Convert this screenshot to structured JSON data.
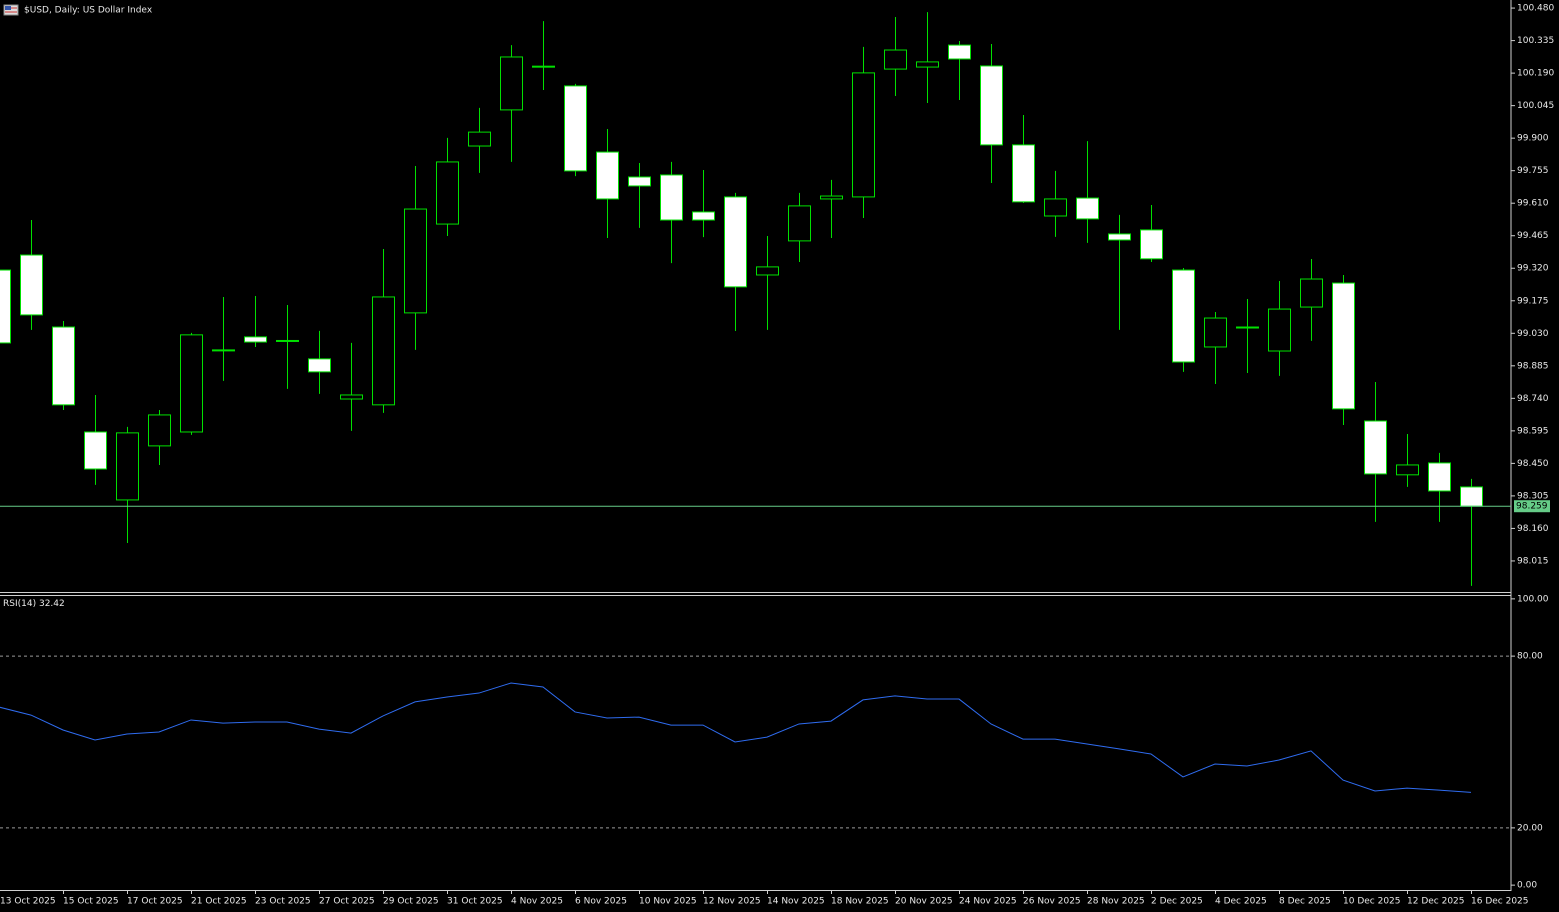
{
  "chart_data": [
    {
      "type": "candlestick",
      "title": "$USD, Daily:  US Dollar Index",
      "categories": [
        "13 Oct 2025",
        null,
        "15 Oct 2025",
        null,
        "17 Oct 2025",
        null,
        "21 Oct 2025",
        null,
        "23 Oct 2025",
        null,
        "27 Oct 2025",
        null,
        "29 Oct 2025",
        null,
        "31 Oct 2025",
        null,
        "4 Nov 2025",
        null,
        "6 Nov 2025",
        null,
        "10 Nov 2025",
        null,
        "12 Nov 2025",
        null,
        "14 Nov 2025",
        null,
        "18 Nov 2025",
        null,
        "20 Nov 2025",
        null,
        "24 Nov 2025",
        null,
        "26 Nov 2025",
        null,
        "28 Nov 2025",
        null,
        "2 Dec 2025",
        null,
        "4 Dec 2025",
        null,
        "8 Dec 2025",
        null,
        "10 Dec 2025",
        null,
        "12 Dec 2025",
        null,
        "16 Dec 2025"
      ],
      "open": [
        99.312,
        99.379,
        99.058,
        98.59,
        98.287,
        98.528,
        98.59,
        98.952,
        99.014,
        98.998,
        98.916,
        98.737,
        98.711,
        99.121,
        99.517,
        99.865,
        100.026,
        100.218,
        100.133,
        99.838,
        99.727,
        99.736,
        99.571,
        99.638,
        99.29,
        99.442,
        99.629,
        99.638,
        100.208,
        100.217,
        100.315,
        100.222,
        99.87,
        99.553,
        99.633,
        99.473,
        99.491,
        99.312,
        98.969,
        99.056,
        98.951,
        99.147,
        99.254,
        98.639,
        98.399,
        98.452,
        98.345
      ],
      "high": [
        99.335,
        99.535,
        99.085,
        98.755,
        98.613,
        98.688,
        99.032,
        99.192,
        99.196,
        99.156,
        99.041,
        98.987,
        99.406,
        99.776,
        99.901,
        100.035,
        100.315,
        100.422,
        100.142,
        99.941,
        99.789,
        99.794,
        99.758,
        99.656,
        99.464,
        99.656,
        99.714,
        100.307,
        100.44,
        100.462,
        100.333,
        100.32,
        100.003,
        99.754,
        99.887,
        99.558,
        99.602,
        99.321,
        99.125,
        99.183,
        99.263,
        99.361,
        99.29,
        98.813,
        98.581,
        98.497,
        98.381
      ],
      "low": [
        98.978,
        99.045,
        98.688,
        98.354,
        98.095,
        98.443,
        98.577,
        98.818,
        98.969,
        98.782,
        98.76,
        98.595,
        98.675,
        98.956,
        99.464,
        99.745,
        99.794,
        100.115,
        99.731,
        99.455,
        99.5,
        99.343,
        99.459,
        99.04,
        99.045,
        99.348,
        99.455,
        99.544,
        100.088,
        100.057,
        100.07,
        99.7,
        99.611,
        99.46,
        99.433,
        99.045,
        99.348,
        98.858,
        98.804,
        98.853,
        98.84,
        98.996,
        98.621,
        98.189,
        98.345,
        98.189,
        97.904
      ],
      "close": [
        98.987,
        99.112,
        98.711,
        98.425,
        98.586,
        98.666,
        99.023,
        98.956,
        98.991,
        98.996,
        98.858,
        98.755,
        99.192,
        99.584,
        99.794,
        99.927,
        100.262,
        100.221,
        99.754,
        99.629,
        99.687,
        99.535,
        99.535,
        99.237,
        99.326,
        99.598,
        99.642,
        100.191,
        100.293,
        100.24,
        100.253,
        99.87,
        99.616,
        99.629,
        99.54,
        99.446,
        99.362,
        98.902,
        99.098,
        99.058,
        99.138,
        99.272,
        98.693,
        98.403,
        98.443,
        98.327,
        98.259
      ],
      "ylim": [
        97.881,
        100.516
      ],
      "yticks": [
        {
          "value": 100.48,
          "label": "100.480"
        },
        {
          "value": 100.335,
          "label": "100.335"
        },
        {
          "value": 100.19,
          "label": "100.190"
        },
        {
          "value": 100.045,
          "label": "100.045"
        },
        {
          "value": 99.9,
          "label": "99.900"
        },
        {
          "value": 99.755,
          "label": "99.755"
        },
        {
          "value": 99.61,
          "label": "99.610"
        },
        {
          "value": 99.465,
          "label": "99.465"
        },
        {
          "value": 99.32,
          "label": "99.320"
        },
        {
          "value": 99.175,
          "label": "99.175"
        },
        {
          "value": 99.03,
          "label": "99.030"
        },
        {
          "value": 98.885,
          "label": "98.885"
        },
        {
          "value": 98.74,
          "label": "98.740"
        },
        {
          "value": 98.595,
          "label": "98.595"
        },
        {
          "value": 98.45,
          "label": "98.450"
        },
        {
          "value": 98.305,
          "label": "98.305"
        },
        {
          "value": 98.16,
          "label": "98.160"
        },
        {
          "value": 98.015,
          "label": "98.015"
        }
      ],
      "up_color": "#000000",
      "down_color": "#ffffff",
      "edge_color": "#00e000",
      "last_price": 98.259,
      "last_price_color": "#66cc88"
    },
    {
      "type": "line",
      "title": "RSI(14)",
      "values": [
        62.2,
        59.4,
        54.2,
        50.7,
        52.8,
        53.5,
        57.7,
        56.6,
        57.0,
        57.0,
        54.5,
        53.1,
        59.1,
        64.0,
        65.7,
        67.1,
        70.6,
        69.2,
        60.5,
        58.4,
        58.7,
        55.9,
        55.9,
        50.0,
        51.7,
        56.3,
        57.3,
        64.7,
        66.1,
        65.0,
        65.0,
        56.3,
        51.0,
        51.0,
        49.3,
        47.6,
        45.8,
        37.8,
        42.3,
        41.6,
        43.7,
        46.9,
        36.7,
        32.9,
        33.9,
        33.2,
        32.42
      ],
      "color": "#2f6cf0",
      "ylim": [
        -1.7,
        101.0
      ],
      "yticks": [
        {
          "value": 100,
          "label": "100.00"
        },
        {
          "value": 80,
          "label": "80.00"
        },
        {
          "value": 20,
          "label": "20.00"
        },
        {
          "value": 0,
          "label": "0.00"
        }
      ],
      "levels": [
        80,
        20
      ]
    }
  ]
}
